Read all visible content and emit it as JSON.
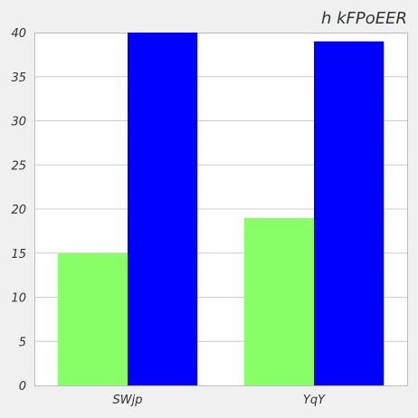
{
  "chart_data": {
    "type": "bar",
    "title": "h kFPoEER",
    "xlabel": "",
    "ylabel": "",
    "categories": [
      "SWjp",
      "YqY"
    ],
    "series": [
      {
        "color": "#88ff66",
        "values": [
          15,
          19
        ]
      },
      {
        "color": "#0000ff",
        "values": [
          40,
          39
        ]
      }
    ],
    "ylim": [
      0,
      40
    ],
    "yticks": [
      0,
      5,
      10,
      15,
      20,
      25,
      30,
      35,
      40
    ],
    "grid": true,
    "legend": "none"
  }
}
